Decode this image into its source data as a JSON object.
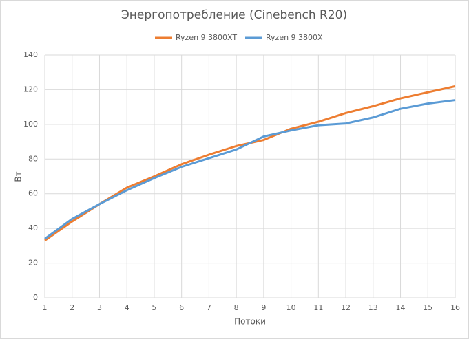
{
  "chart_data": {
    "type": "line",
    "title": "Энергопотребление (Cinebench R20)",
    "x": [
      1,
      2,
      3,
      4,
      5,
      6,
      7,
      8,
      9,
      10,
      11,
      12,
      13,
      14,
      15,
      16
    ],
    "series": [
      {
        "name": "Ryzen 9 3800XT",
        "color": "#ed7d31",
        "values": [
          33,
          44,
          54,
          63.5,
          70,
          77,
          82.5,
          87.5,
          91,
          97.5,
          101.5,
          106.5,
          110.5,
          115,
          118.5,
          122
        ]
      },
      {
        "name": "Ryzen 9 3800X",
        "color": "#5b9bd5",
        "values": [
          34,
          45.5,
          54,
          62,
          69,
          75.5,
          80.5,
          85.5,
          93,
          96.5,
          99.5,
          100.5,
          104,
          109,
          112,
          114
        ]
      }
    ],
    "xlabel": "Потоки",
    "ylabel": "Вт",
    "xlim": [
      1,
      16
    ],
    "xticks": [
      1,
      2,
      3,
      4,
      5,
      6,
      7,
      8,
      9,
      10,
      11,
      12,
      13,
      14,
      15,
      16
    ],
    "ylim": [
      0,
      140
    ],
    "yticks": [
      0,
      20,
      40,
      60,
      80,
      100,
      120,
      140
    ],
    "grid": true,
    "legend": "top"
  }
}
